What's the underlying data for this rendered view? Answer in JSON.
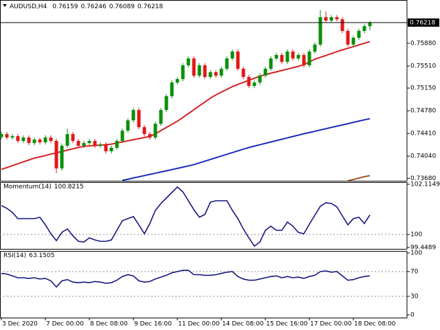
{
  "chart_data": [
    {
      "type": "candlestick",
      "title": "AUDUSD,H4",
      "categories": [
        "3 Dec 2020",
        null,
        null,
        null,
        null,
        null,
        null,
        null,
        "7 Dec 00:00",
        null,
        null,
        null,
        null,
        null,
        null,
        null,
        "8 Dec 08:00",
        null,
        null,
        null,
        null,
        null,
        null,
        null,
        "9 Dec 16:00",
        null,
        null,
        null,
        null,
        null,
        null,
        null,
        "11 Dec 00:00",
        null,
        null,
        null,
        null,
        null,
        null,
        null,
        "14 Dec 08:00",
        null,
        null,
        null,
        null,
        null,
        null,
        null,
        "15 Dec 16:00",
        null,
        null,
        null,
        null,
        null,
        null,
        null,
        "17 Dec 00:00",
        null,
        null,
        null,
        null,
        null,
        null,
        null,
        "18 Dec 08:00",
        null,
        null,
        null
      ],
      "open": [
        0.7435,
        0.744,
        0.74344,
        0.74366,
        0.74288,
        0.74344,
        0.74254,
        0.7431,
        0.74266,
        0.74344,
        0.74288,
        0.7384,
        0.7421,
        0.744,
        0.74288,
        0.7421,
        0.74254,
        0.74288,
        0.7421,
        0.74232,
        0.7412,
        0.74176,
        0.74288,
        0.74456,
        0.74624,
        0.74792,
        0.74512,
        0.744,
        0.74344,
        0.74568,
        0.74792,
        0.75017,
        0.75241,
        0.75297,
        0.75521,
        0.75633,
        0.75353,
        0.75521,
        0.75331,
        0.75409,
        0.75353,
        0.75465,
        0.75633,
        0.75745,
        0.75465,
        0.75331,
        0.75185,
        0.75241,
        0.75353,
        0.75465,
        0.75633,
        0.75689,
        0.75577,
        0.75745,
        0.75633,
        0.75689,
        0.75521,
        0.75745,
        0.7586,
        0.76306,
        0.7625,
        0.76306,
        0.76272,
        0.76082,
        0.7586,
        0.7597,
        0.76082,
        0.76159
      ],
      "high": [
        0.74435,
        0.74435,
        0.74401,
        0.74401,
        0.74379,
        0.74379,
        0.74345,
        0.74345,
        0.74379,
        0.74379,
        0.74323,
        0.74245,
        0.7449,
        0.74435,
        0.74323,
        0.74289,
        0.74323,
        0.74323,
        0.74267,
        0.74267,
        0.74211,
        0.74323,
        0.74491,
        0.74659,
        0.74827,
        0.74827,
        0.74547,
        0.74435,
        0.74603,
        0.74827,
        0.75052,
        0.75276,
        0.75332,
        0.75556,
        0.75668,
        0.75668,
        0.75556,
        0.75556,
        0.75444,
        0.75444,
        0.755,
        0.75668,
        0.7578,
        0.7578,
        0.755,
        0.75366,
        0.75276,
        0.75388,
        0.755,
        0.75668,
        0.75724,
        0.75724,
        0.7578,
        0.7578,
        0.75724,
        0.75724,
        0.7578,
        0.75895,
        0.7642,
        0.764,
        0.76341,
        0.76341,
        0.76307,
        0.76117,
        0.76005,
        0.76117,
        0.76195,
        0.76246
      ],
      "low": [
        0.74315,
        0.74309,
        0.74309,
        0.74253,
        0.74253,
        0.74219,
        0.74219,
        0.74231,
        0.74231,
        0.74253,
        0.7376,
        0.73805,
        0.74175,
        0.74253,
        0.74175,
        0.74175,
        0.74219,
        0.74175,
        0.74175,
        0.74085,
        0.74085,
        0.74141,
        0.74253,
        0.74421,
        0.74589,
        0.74477,
        0.74365,
        0.74309,
        0.74309,
        0.74533,
        0.74757,
        0.74982,
        0.75206,
        0.75262,
        0.75486,
        0.75318,
        0.75318,
        0.75296,
        0.75296,
        0.75318,
        0.75318,
        0.7543,
        0.75598,
        0.7543,
        0.75296,
        0.7515,
        0.7515,
        0.75206,
        0.75318,
        0.7543,
        0.75598,
        0.75542,
        0.75542,
        0.75598,
        0.75598,
        0.75486,
        0.75486,
        0.7571,
        0.75825,
        0.76215,
        0.76215,
        0.76237,
        0.76047,
        0.75825,
        0.75825,
        0.75935,
        0.76047,
        0.76089
      ],
      "close": [
        0.744,
        0.74344,
        0.74366,
        0.74288,
        0.74344,
        0.74254,
        0.7431,
        0.74266,
        0.74344,
        0.74288,
        0.7384,
        0.7421,
        0.744,
        0.74288,
        0.7421,
        0.74254,
        0.74288,
        0.7421,
        0.74232,
        0.7412,
        0.74176,
        0.74288,
        0.74456,
        0.74624,
        0.74792,
        0.74512,
        0.744,
        0.74344,
        0.74568,
        0.74792,
        0.75017,
        0.75241,
        0.75297,
        0.75521,
        0.75633,
        0.75353,
        0.75521,
        0.75331,
        0.75409,
        0.75353,
        0.75465,
        0.75633,
        0.75745,
        0.75465,
        0.75331,
        0.75185,
        0.75241,
        0.75353,
        0.75465,
        0.75633,
        0.75689,
        0.75577,
        0.75745,
        0.75633,
        0.75689,
        0.75521,
        0.75745,
        0.7586,
        0.76306,
        0.7625,
        0.76306,
        0.76272,
        0.76082,
        0.7586,
        0.7597,
        0.76082,
        0.7616,
        0.76218
      ],
      "up_color": "#0a8f0a",
      "down_color": "#e01818",
      "series": [
        {
          "color": "#d42020",
          "values": [
            0.73825,
            0.73855,
            0.73885,
            0.73916,
            0.73947,
            0.73977,
            0.74008,
            0.74029,
            0.74051,
            0.74073,
            0.74095,
            0.74116,
            0.74138,
            0.7416,
            0.74182,
            0.742,
            0.74207,
            0.74214,
            0.7422,
            0.74227,
            0.74236,
            0.74254,
            0.74272,
            0.7429,
            0.74308,
            0.74326,
            0.74344,
            0.74362,
            0.74405,
            0.74456,
            0.74508,
            0.74559,
            0.74611,
            0.74671,
            0.74734,
            0.74797,
            0.7486,
            0.74922,
            0.74985,
            0.75039,
            0.75084,
            0.75129,
            0.75174,
            0.75209,
            0.75243,
            0.75277,
            0.7531,
            0.75344,
            0.7537,
            0.75392,
            0.75415,
            0.75437,
            0.7546,
            0.75482,
            0.75504,
            0.75532,
            0.75577,
            0.75622,
            0.75652,
            0.75682,
            0.75712,
            0.75745,
            0.75772,
            0.75799,
            0.75826,
            0.75853,
            0.7588,
            0.75907
          ]
        },
        {
          "color": "#1a2ab8",
          "values": [
            null,
            null,
            null,
            null,
            null,
            null,
            null,
            null,
            null,
            null,
            null,
            null,
            null,
            null,
            null,
            null,
            null,
            null,
            null,
            null,
            null,
            null,
            0.73645,
            0.73663,
            0.73684,
            0.73703,
            0.73723,
            0.73743,
            0.73762,
            0.73782,
            0.73801,
            0.73821,
            0.73841,
            0.73861,
            0.73881,
            0.73902,
            0.7393,
            0.73958,
            0.73986,
            0.74014,
            0.74042,
            0.7407,
            0.74098,
            0.74126,
            0.74154,
            0.74181,
            0.74204,
            0.74226,
            0.74249,
            0.74271,
            0.74294,
            0.74316,
            0.74338,
            0.74361,
            0.74383,
            0.74406,
            0.74425,
            0.74446,
            0.74467,
            0.74487,
            0.74509,
            0.74529,
            0.74549,
            0.7457,
            0.74591,
            0.74612,
            0.74632,
            0.74652
          ]
        },
        {
          "color": "#a0522d",
          "values": [
            null,
            null,
            null,
            null,
            null,
            null,
            null,
            null,
            null,
            null,
            null,
            null,
            null,
            null,
            null,
            null,
            null,
            null,
            null,
            null,
            null,
            null,
            null,
            null,
            null,
            null,
            null,
            null,
            null,
            null,
            null,
            null,
            null,
            null,
            null,
            null,
            null,
            null,
            null,
            null,
            null,
            null,
            null,
            null,
            null,
            null,
            null,
            null,
            null,
            null,
            null,
            null,
            null,
            null,
            null,
            null,
            null,
            null,
            null,
            null,
            null,
            null,
            null,
            0.73638,
            0.7366,
            0.73683,
            0.73705,
            0.73722
          ]
        }
      ],
      "ylim": [
        0.73638,
        0.76586
      ],
      "yticks": [
        {
          "value": 0.7588,
          "label": "0.75880"
        },
        {
          "value": 0.7551,
          "label": "0.75510"
        },
        {
          "value": 0.7515,
          "label": "0.75150"
        },
        {
          "value": 0.7478,
          "label": "0.74780"
        },
        {
          "value": 0.7441,
          "label": "0.74410"
        },
        {
          "value": 0.7404,
          "label": "0.74040"
        },
        {
          "value": 0.7368,
          "label": "0.73680"
        }
      ]
    },
    {
      "type": "line",
      "title": "Momentum(14)",
      "color": "#141480",
      "values": [
        101.2165,
        101.1006,
        100.9267,
        100.6659,
        100.6659,
        100.6659,
        100.6659,
        100.7239,
        100.4051,
        100.0283,
        99.7385,
        100.0863,
        100.2312,
        99.9414,
        99.7096,
        99.6806,
        99.8545,
        99.7675,
        99.7096,
        99.7096,
        99.7675,
        100.1732,
        100.579,
        100.6659,
        100.7528,
        100.4051,
        100.0283,
        100.463,
        101.0137,
        101.3035,
        101.5353,
        101.7671,
        101.999,
        101.7961,
        101.4194,
        101.0426,
        100.7239,
        100.8398,
        101.3614,
        101.4194,
        101.4194,
        101.4194,
        101.0137,
        100.6659,
        100.2312,
        99.8545,
        99.5067,
        99.6806,
        100.1732,
        100.3471,
        100.1732,
        100.1732,
        100.521,
        100.3471,
        100.0863,
        100.0283,
        100.4341,
        100.8108,
        101.1875,
        101.3324,
        101.3035,
        101.1586,
        100.7818,
        100.4051,
        100.6659,
        100.7239,
        100.463,
        100.8215
      ],
      "ylim": [
        99.4489,
        102.1149
      ],
      "yticks": [
        102.1149,
        100,
        99.4489
      ],
      "levels": [
        100
      ]
    },
    {
      "type": "line",
      "title": "RSI(14)",
      "color": "#141480",
      "values": [
        67,
        66,
        63,
        60,
        60,
        59,
        60,
        58,
        59,
        55,
        45,
        55,
        57,
        53,
        52,
        53,
        52,
        54,
        53,
        51,
        52,
        56,
        62,
        65,
        63,
        55,
        53,
        54,
        58,
        61,
        64,
        68,
        70,
        72,
        72,
        65,
        65,
        64,
        64,
        65,
        67,
        69,
        70,
        62,
        58,
        56,
        56,
        58,
        60,
        62,
        63,
        60,
        62,
        60,
        61,
        59,
        62,
        64,
        70,
        71,
        69,
        70,
        63,
        56,
        57,
        60,
        62,
        63.1505
      ],
      "ylim": [
        0,
        100
      ],
      "yticks": [
        100,
        70,
        30,
        0
      ],
      "levels": [
        70,
        30
      ]
    }
  ]
}
